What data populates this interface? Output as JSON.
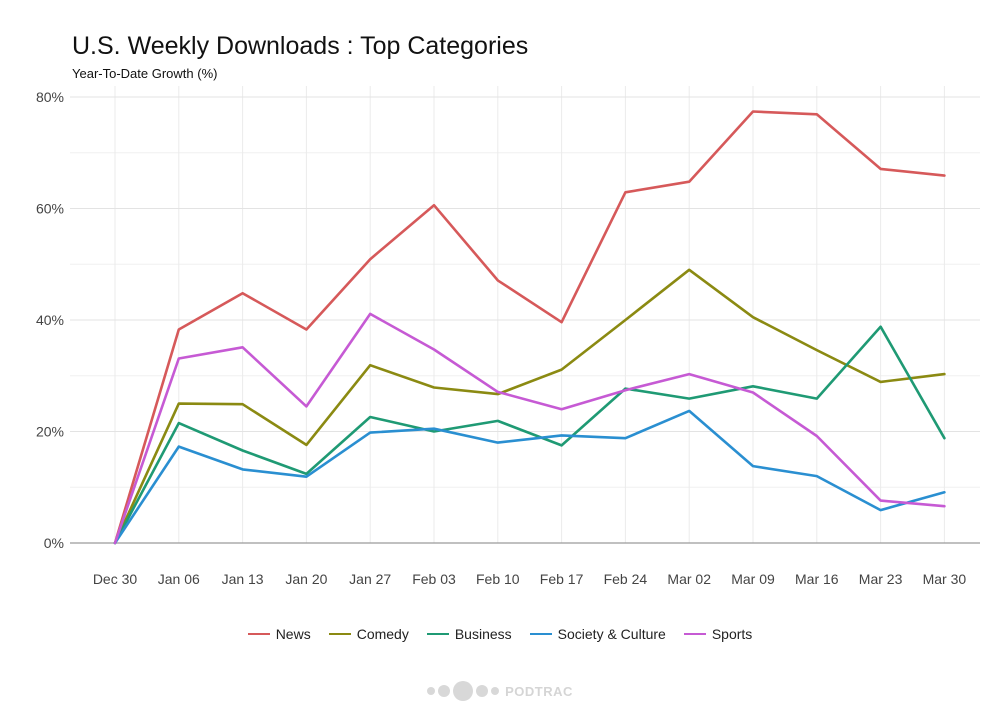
{
  "chart_data": {
    "type": "line",
    "title": "U.S. Weekly Downloads : Top Categories",
    "subtitle": "Year-To-Date Growth (%)",
    "categories": [
      "Dec 30",
      "Jan 06",
      "Jan 13",
      "Jan 20",
      "Jan 27",
      "Feb 03",
      "Feb 10",
      "Feb 17",
      "Feb 24",
      "Mar 02",
      "Mar 09",
      "Mar 16",
      "Mar 23",
      "Mar 30"
    ],
    "y_ticks": [
      "0%",
      "20%",
      "40%",
      "60%",
      "80%"
    ],
    "ylim": [
      0,
      80
    ],
    "grid": true,
    "legend_position": "bottom",
    "series": [
      {
        "name": "News",
        "color": "#d6595a",
        "values": [
          0,
          38.3,
          44.8,
          38.3,
          50.9,
          60.6,
          47.1,
          39.6,
          62.9,
          64.8,
          77.4,
          76.9,
          67.1,
          65.9
        ]
      },
      {
        "name": "Comedy",
        "color": "#8b8a12",
        "values": [
          0,
          25.0,
          24.9,
          17.6,
          31.9,
          27.9,
          26.7,
          31.1,
          40.0,
          49.0,
          40.5,
          34.6,
          28.9,
          30.3
        ]
      },
      {
        "name": "Business",
        "color": "#1f9a74",
        "values": [
          0,
          21.5,
          16.6,
          12.4,
          22.6,
          20.0,
          21.9,
          17.5,
          27.7,
          25.9,
          28.1,
          25.9,
          38.8,
          18.8
        ]
      },
      {
        "name": "Society & Culture",
        "color": "#2a8fd1",
        "values": [
          0,
          17.3,
          13.2,
          11.9,
          19.8,
          20.5,
          18.0,
          19.3,
          18.8,
          23.7,
          13.8,
          12.0,
          5.9,
          9.1
        ]
      },
      {
        "name": "Sports",
        "color": "#c65ad4",
        "values": [
          0,
          33.1,
          35.1,
          24.5,
          41.1,
          34.7,
          27.1,
          24.0,
          27.4,
          30.3,
          27.0,
          19.2,
          7.6,
          6.6
        ]
      }
    ]
  },
  "footer": {
    "logo_text": "PODTRAC"
  }
}
